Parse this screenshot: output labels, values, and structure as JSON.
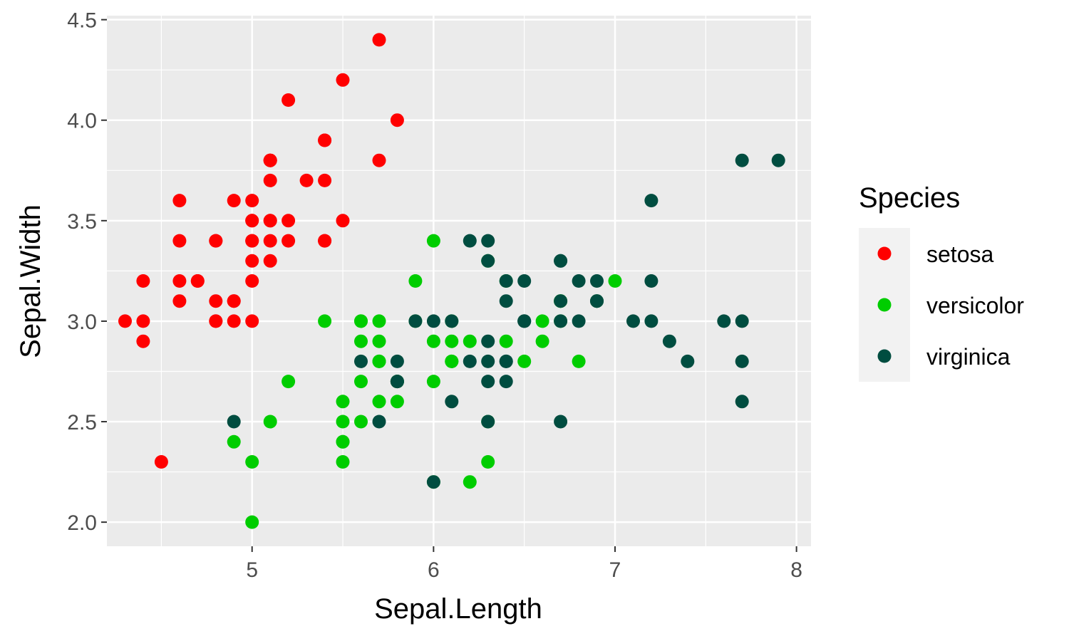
{
  "chart_data": {
    "type": "scatter",
    "xlabel": "Sepal.Length",
    "ylabel": "Sepal.Width",
    "xlim": [
      4.2,
      8.08
    ],
    "ylim": [
      1.88,
      4.52
    ],
    "x_ticks": [
      5,
      6,
      7,
      8
    ],
    "x_tick_labels": [
      "5",
      "6",
      "7",
      "8"
    ],
    "y_ticks": [
      2.0,
      2.5,
      3.0,
      3.5,
      4.0,
      4.5
    ],
    "y_tick_labels": [
      "2.0",
      "2.5",
      "3.0",
      "3.5",
      "4.0",
      "4.5"
    ],
    "grid": true,
    "panel_background": "#ebebeb",
    "legend": {
      "title": "Species",
      "placement": "right"
    },
    "series": [
      {
        "name": "setosa",
        "color": "#ff0000",
        "points": [
          [
            5.1,
            3.5
          ],
          [
            4.9,
            3.0
          ],
          [
            4.7,
            3.2
          ],
          [
            4.6,
            3.1
          ],
          [
            5.0,
            3.6
          ],
          [
            5.4,
            3.9
          ],
          [
            4.6,
            3.4
          ],
          [
            5.0,
            3.4
          ],
          [
            4.4,
            2.9
          ],
          [
            4.9,
            3.1
          ],
          [
            5.4,
            3.7
          ],
          [
            4.8,
            3.4
          ],
          [
            4.8,
            3.0
          ],
          [
            4.3,
            3.0
          ],
          [
            5.8,
            4.0
          ],
          [
            5.7,
            4.4
          ],
          [
            5.4,
            3.9
          ],
          [
            5.1,
            3.5
          ],
          [
            5.7,
            3.8
          ],
          [
            5.1,
            3.8
          ],
          [
            5.4,
            3.4
          ],
          [
            5.1,
            3.7
          ],
          [
            4.6,
            3.6
          ],
          [
            5.1,
            3.3
          ],
          [
            4.8,
            3.4
          ],
          [
            5.0,
            3.0
          ],
          [
            5.0,
            3.4
          ],
          [
            5.2,
            3.5
          ],
          [
            5.2,
            3.4
          ],
          [
            4.7,
            3.2
          ],
          [
            4.8,
            3.1
          ],
          [
            5.4,
            3.4
          ],
          [
            5.2,
            4.1
          ],
          [
            5.5,
            4.2
          ],
          [
            4.9,
            3.1
          ],
          [
            5.0,
            3.2
          ],
          [
            5.5,
            3.5
          ],
          [
            4.9,
            3.6
          ],
          [
            4.4,
            3.0
          ],
          [
            5.1,
            3.4
          ],
          [
            5.0,
            3.5
          ],
          [
            4.5,
            2.3
          ],
          [
            4.4,
            3.2
          ],
          [
            5.0,
            3.5
          ],
          [
            5.1,
            3.8
          ],
          [
            4.8,
            3.0
          ],
          [
            5.1,
            3.8
          ],
          [
            4.6,
            3.2
          ],
          [
            5.3,
            3.7
          ],
          [
            5.0,
            3.3
          ]
        ]
      },
      {
        "name": "versicolor",
        "color": "#00cd00",
        "points": [
          [
            7.0,
            3.2
          ],
          [
            6.4,
            3.2
          ],
          [
            6.9,
            3.1
          ],
          [
            5.5,
            2.3
          ],
          [
            6.5,
            2.8
          ],
          [
            5.7,
            2.8
          ],
          [
            6.3,
            3.3
          ],
          [
            4.9,
            2.4
          ],
          [
            6.6,
            2.9
          ],
          [
            5.2,
            2.7
          ],
          [
            5.0,
            2.0
          ],
          [
            5.9,
            3.0
          ],
          [
            6.0,
            2.2
          ],
          [
            6.1,
            2.9
          ],
          [
            5.6,
            2.9
          ],
          [
            6.7,
            3.1
          ],
          [
            5.6,
            3.0
          ],
          [
            5.8,
            2.7
          ],
          [
            6.2,
            2.2
          ],
          [
            5.6,
            2.5
          ],
          [
            5.9,
            3.2
          ],
          [
            6.1,
            2.8
          ],
          [
            6.3,
            2.5
          ],
          [
            6.1,
            2.8
          ],
          [
            6.4,
            2.9
          ],
          [
            6.6,
            3.0
          ],
          [
            6.8,
            2.8
          ],
          [
            6.7,
            3.0
          ],
          [
            6.0,
            2.9
          ],
          [
            5.7,
            2.6
          ],
          [
            5.5,
            2.4
          ],
          [
            5.5,
            2.4
          ],
          [
            5.8,
            2.7
          ],
          [
            6.0,
            2.7
          ],
          [
            5.4,
            3.0
          ],
          [
            6.0,
            3.4
          ],
          [
            6.7,
            3.1
          ],
          [
            6.3,
            2.3
          ],
          [
            5.6,
            3.0
          ],
          [
            5.5,
            2.5
          ],
          [
            5.5,
            2.6
          ],
          [
            6.1,
            3.0
          ],
          [
            5.8,
            2.6
          ],
          [
            5.0,
            2.3
          ],
          [
            5.6,
            2.7
          ],
          [
            5.7,
            3.0
          ],
          [
            5.7,
            2.9
          ],
          [
            6.2,
            2.9
          ],
          [
            5.1,
            2.5
          ],
          [
            5.7,
            2.8
          ]
        ]
      },
      {
        "name": "virginica",
        "color": "#004d40",
        "points": [
          [
            6.3,
            3.3
          ],
          [
            5.8,
            2.7
          ],
          [
            7.1,
            3.0
          ],
          [
            6.3,
            2.9
          ],
          [
            6.5,
            3.0
          ],
          [
            7.6,
            3.0
          ],
          [
            4.9,
            2.5
          ],
          [
            7.3,
            2.9
          ],
          [
            6.7,
            2.5
          ],
          [
            7.2,
            3.6
          ],
          [
            6.5,
            3.2
          ],
          [
            6.4,
            2.7
          ],
          [
            6.8,
            3.0
          ],
          [
            5.7,
            2.5
          ],
          [
            5.8,
            2.8
          ],
          [
            6.4,
            3.2
          ],
          [
            6.5,
            3.0
          ],
          [
            7.7,
            3.8
          ],
          [
            7.7,
            2.6
          ],
          [
            6.0,
            2.2
          ],
          [
            6.9,
            3.2
          ],
          [
            5.6,
            2.8
          ],
          [
            7.7,
            2.8
          ],
          [
            6.3,
            2.7
          ],
          [
            6.7,
            3.3
          ],
          [
            7.2,
            3.2
          ],
          [
            6.2,
            2.8
          ],
          [
            6.1,
            3.0
          ],
          [
            6.4,
            2.8
          ],
          [
            7.2,
            3.0
          ],
          [
            7.4,
            2.8
          ],
          [
            7.9,
            3.8
          ],
          [
            6.4,
            2.8
          ],
          [
            6.3,
            2.8
          ],
          [
            6.1,
            2.6
          ],
          [
            7.7,
            3.0
          ],
          [
            6.3,
            3.4
          ],
          [
            6.4,
            3.1
          ],
          [
            6.0,
            3.0
          ],
          [
            6.9,
            3.1
          ],
          [
            6.7,
            3.1
          ],
          [
            6.9,
            3.1
          ],
          [
            5.8,
            2.7
          ],
          [
            6.8,
            3.2
          ],
          [
            6.7,
            3.3
          ],
          [
            6.7,
            3.0
          ],
          [
            6.3,
            2.5
          ],
          [
            6.5,
            3.0
          ],
          [
            6.2,
            3.4
          ],
          [
            5.9,
            3.0
          ]
        ]
      }
    ]
  }
}
